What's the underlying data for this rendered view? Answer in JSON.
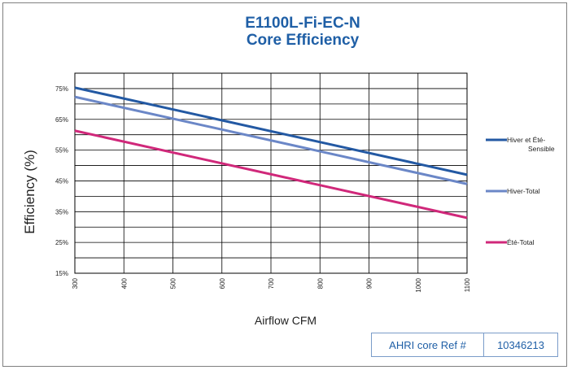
{
  "chart_data": {
    "type": "line",
    "title": [
      "E1100L-Fi-EC-N",
      "Core Efficiency"
    ],
    "xlabel": "Airflow CFM",
    "ylabel": "Efficiency (%)",
    "xlim": [
      300,
      1100
    ],
    "ylim": [
      15,
      80
    ],
    "x_ticks": [
      300,
      400,
      500,
      600,
      700,
      800,
      900,
      1000,
      1100
    ],
    "y_ticks": [
      15,
      25,
      35,
      45,
      55,
      65,
      75
    ],
    "y_tick_labels": [
      "15%",
      "25%",
      "35%",
      "45%",
      "55%",
      "65%",
      "75%"
    ],
    "grid": true,
    "legend_position": "right",
    "series": [
      {
        "name": [
          "Hiver et Été-",
          "Sensible"
        ],
        "color": "#2359a3",
        "x": [
          300,
          1100
        ],
        "y": [
          75.3,
          47.0
        ]
      },
      {
        "name": [
          "Hiver-Total"
        ],
        "color": "#6b87c7",
        "x": [
          300,
          1100
        ],
        "y": [
          72.3,
          44.0
        ]
      },
      {
        "name": [
          "Été-Total"
        ],
        "color": "#d0287a",
        "x": [
          300,
          1100
        ],
        "y": [
          61.3,
          33.0
        ]
      }
    ]
  },
  "reference": {
    "label": "AHRI core Ref #",
    "value": "10346213"
  }
}
